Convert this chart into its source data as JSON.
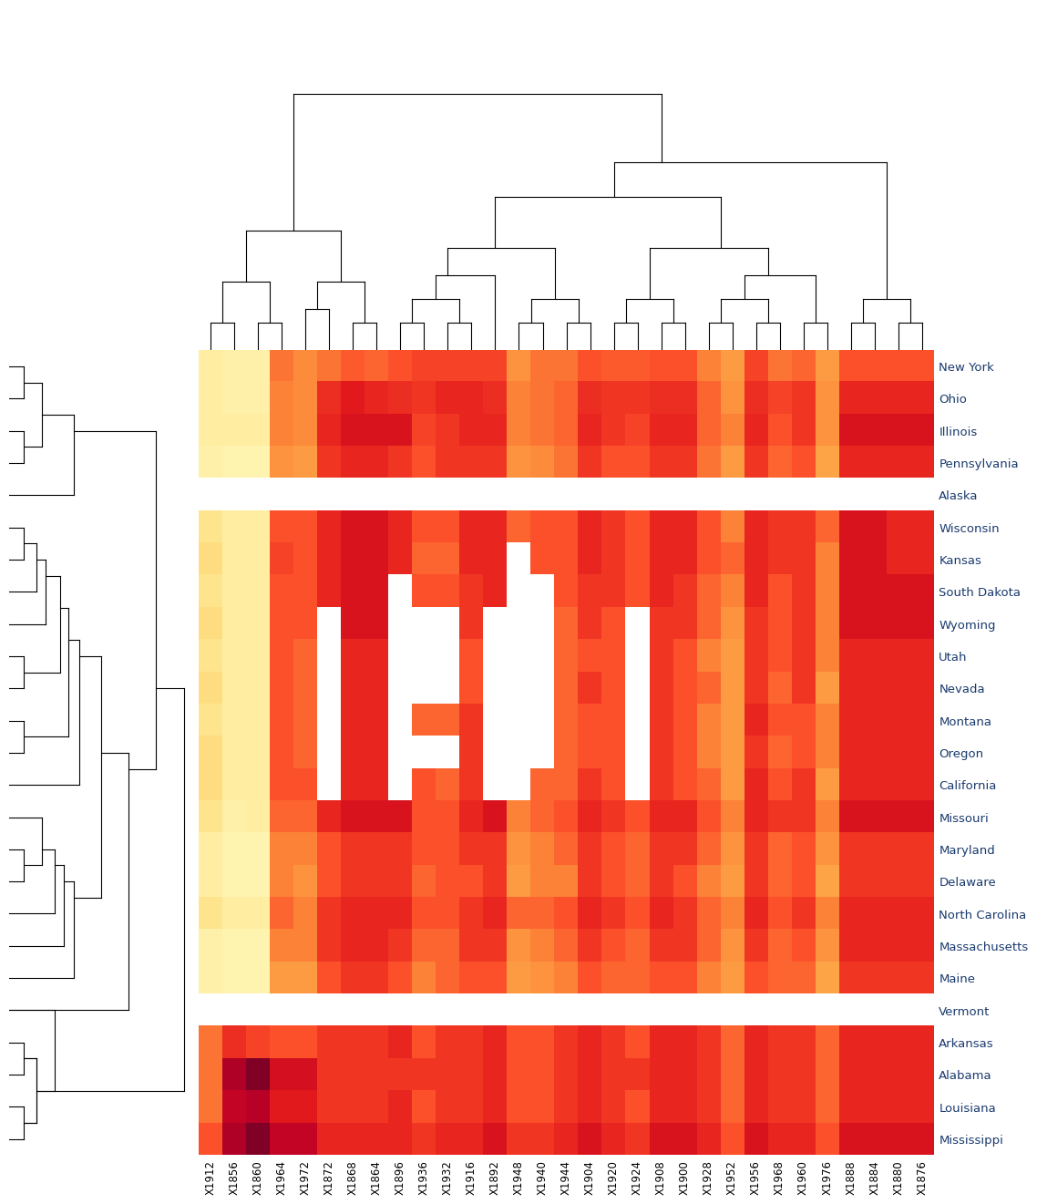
{
  "row_order": [
    "New York",
    "Ohio",
    "Illinois",
    "Pennsylvania",
    "Alaska",
    "Wisconsin",
    "Kansas",
    "South Dakota",
    "Wyoming",
    "Utah",
    "Nevada",
    "Montana",
    "Oregon",
    "California",
    "Missouri",
    "Maryland",
    "Delaware",
    "North Carolina",
    "Massachusetts",
    "Maine",
    "Vermont",
    "Arkansas",
    "Alabama",
    "Louisiana",
    "Mississippi"
  ],
  "col_order": [
    "X1912",
    "X1856",
    "X1860",
    "X1964",
    "X1972",
    "X1872",
    "X1868",
    "X1864",
    "X1896",
    "X1936",
    "X1932",
    "X1916",
    "X1892",
    "X1948",
    "X1940",
    "X1944",
    "X1904",
    "X1920",
    "X1924",
    "X1908",
    "X1900",
    "X1928",
    "X1952",
    "X1956",
    "X1968",
    "X1960",
    "X1976",
    "X1888",
    "X1884",
    "X1880",
    "X1876"
  ],
  "colormap": "YlOrRd",
  "background_color": "#ffffff",
  "label_color": "#1a3a6e",
  "vmin": 0.0,
  "vmax": 1.0,
  "fig_width": 13.44,
  "fig_height": 19.2
}
